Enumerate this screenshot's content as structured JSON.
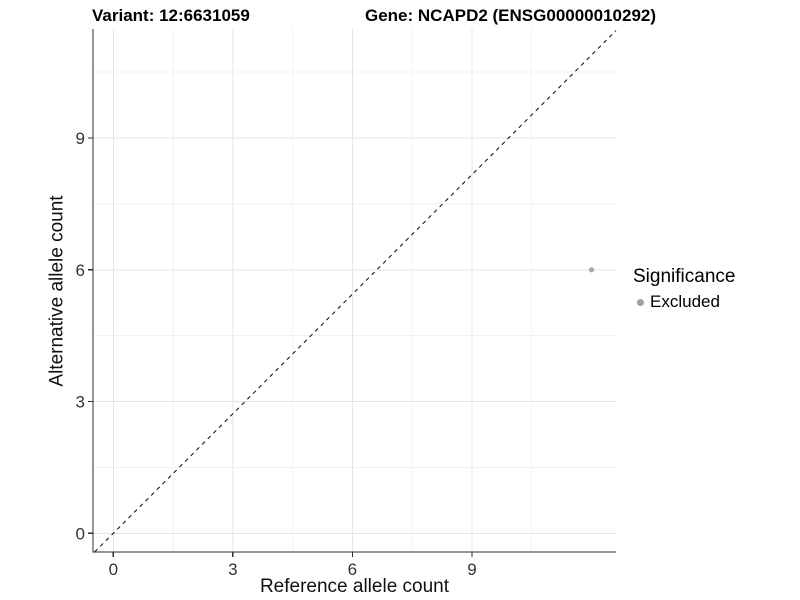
{
  "chart_data": {
    "type": "scatter",
    "title_left": "Variant: 12:6631059",
    "title_right": "Gene: NCAPD2 (ENSG00000010292)",
    "xlabel": "Reference allele count",
    "ylabel": "Alternative allele count",
    "x_ticks": [
      0,
      3,
      6,
      9
    ],
    "y_ticks": [
      0,
      3,
      6,
      9
    ],
    "x_minor": [
      1.5,
      4.5,
      7.5,
      10.5
    ],
    "y_minor": [
      1.5,
      4.5,
      7.5,
      10.5
    ],
    "xlim": [
      -0.5,
      12.6
    ],
    "ylim": [
      -0.45,
      11.5
    ],
    "grid": true,
    "legend_position": "right",
    "point_radius": 2.6,
    "series": [
      {
        "name": "Excluded",
        "color": "#a8a8a8",
        "points": [
          {
            "x": 12,
            "y": 6
          }
        ]
      }
    ],
    "reference_line": {
      "type": "identity",
      "slope": 1,
      "intercept": 0,
      "style": "dashed",
      "color": "#1a1a1a"
    },
    "legend": {
      "title": "Significance",
      "items": [
        {
          "label": "Excluded",
          "color": "#a0a0a0"
        }
      ]
    },
    "colors": {
      "axis": "#2e2e2e",
      "tick_label": "#333333",
      "grid_major": "#e5e5e5",
      "grid_minor": "#f2f2f2",
      "background": "#ffffff"
    }
  }
}
